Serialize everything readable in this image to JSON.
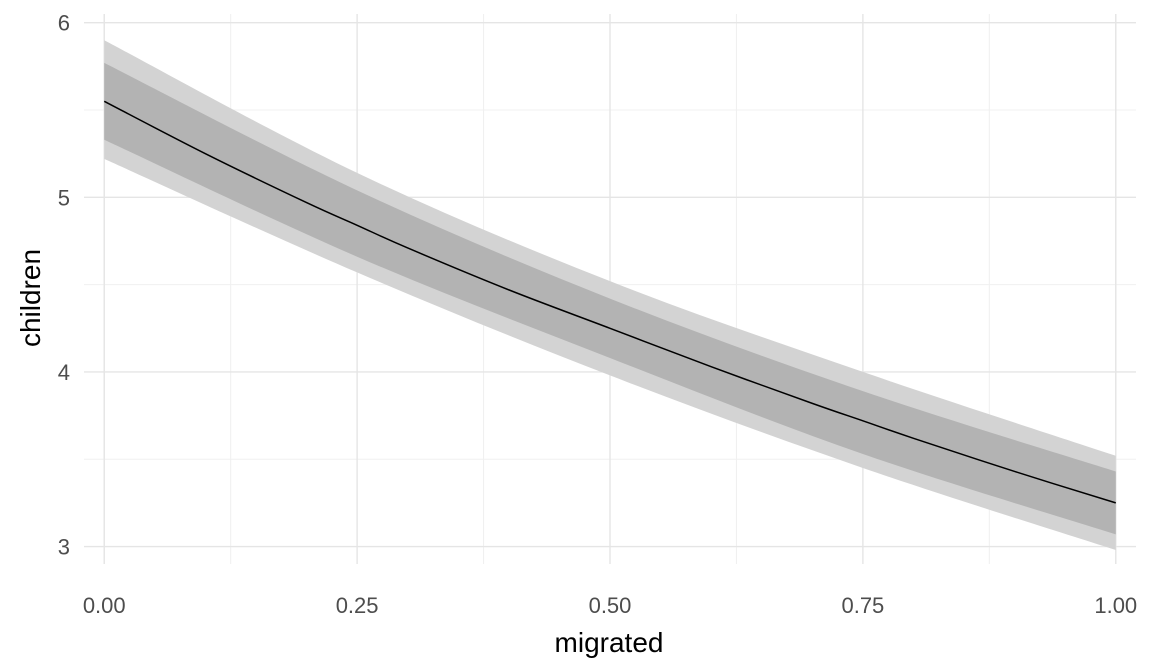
{
  "chart_data": {
    "type": "line",
    "title": "",
    "xlabel": "migrated",
    "ylabel": "children",
    "xlim": [
      -0.02,
      1.02
    ],
    "ylim": [
      2.9,
      6.05
    ],
    "x_ticks": [
      0.0,
      0.25,
      0.5,
      0.75,
      1.0
    ],
    "x_tick_labels": [
      "0.00",
      "0.25",
      "0.50",
      "0.75",
      "1.00"
    ],
    "y_ticks": [
      3,
      4,
      5,
      6
    ],
    "y_tick_labels": [
      "3",
      "4",
      "5",
      "6"
    ],
    "grid": true,
    "legend": "none",
    "series": [
      {
        "role": "outer-interval",
        "color": "#d3d3d3",
        "x": [
          0.0,
          0.25,
          0.5,
          0.75,
          1.0
        ],
        "lower": [
          5.22,
          4.57,
          3.98,
          3.45,
          2.98
        ],
        "upper": [
          5.9,
          5.14,
          4.52,
          4.0,
          3.52
        ]
      },
      {
        "role": "inner-interval",
        "color": "#b3b3b3",
        "x": [
          0.0,
          0.25,
          0.5,
          0.75,
          1.0
        ],
        "lower": [
          5.33,
          4.66,
          4.08,
          3.53,
          3.07
        ],
        "upper": [
          5.77,
          5.04,
          4.42,
          3.89,
          3.43
        ]
      },
      {
        "role": "estimate",
        "color": "#000000",
        "x": [
          0.0,
          0.1,
          0.2,
          0.25,
          0.3,
          0.4,
          0.5,
          0.6,
          0.7,
          0.75,
          0.8,
          0.9,
          1.0
        ],
        "y": [
          5.55,
          5.25,
          4.97,
          4.84,
          4.71,
          4.47,
          4.25,
          4.03,
          3.82,
          3.72,
          3.62,
          3.43,
          3.25
        ]
      }
    ]
  }
}
